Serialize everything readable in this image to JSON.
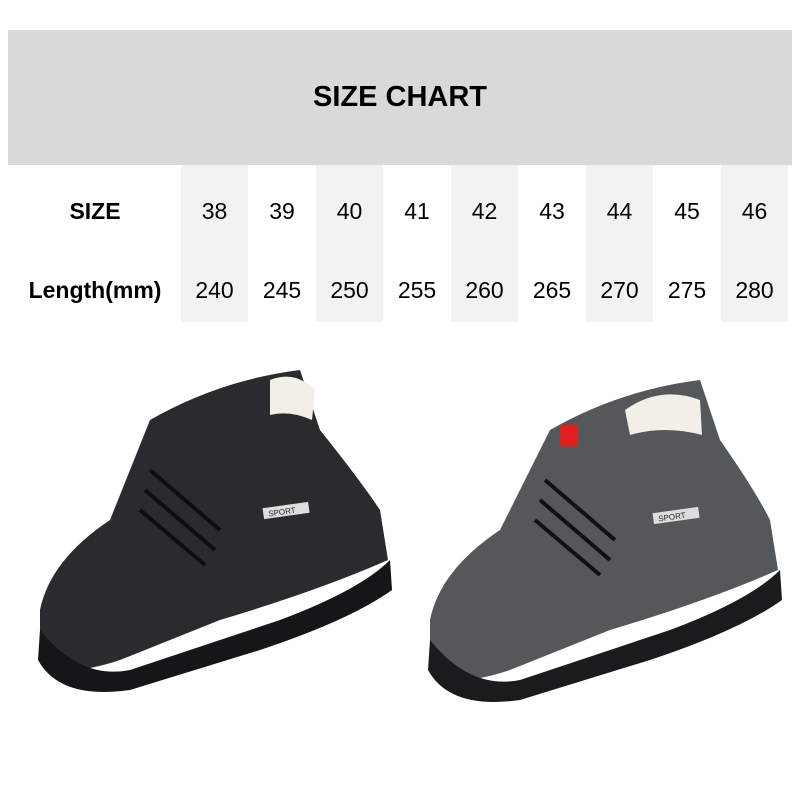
{
  "title": "SIZE CHART",
  "table": {
    "row_labels": [
      "SIZE",
      "Length(mm)"
    ],
    "sizes": [
      "38",
      "39",
      "40",
      "41",
      "42",
      "43",
      "44",
      "45",
      "46"
    ],
    "lengths": [
      "240",
      "245",
      "250",
      "255",
      "260",
      "265",
      "270",
      "275",
      "280"
    ]
  },
  "colors": {
    "header_bg": "#d9d9d9",
    "column_shade": "#f2f2f2",
    "shoe_black": "#2a2b2e",
    "shoe_gray": "#55585b"
  },
  "products": [
    {
      "color": "black",
      "badge": "SPORT"
    },
    {
      "color": "gray",
      "badge": "SPORT"
    }
  ]
}
